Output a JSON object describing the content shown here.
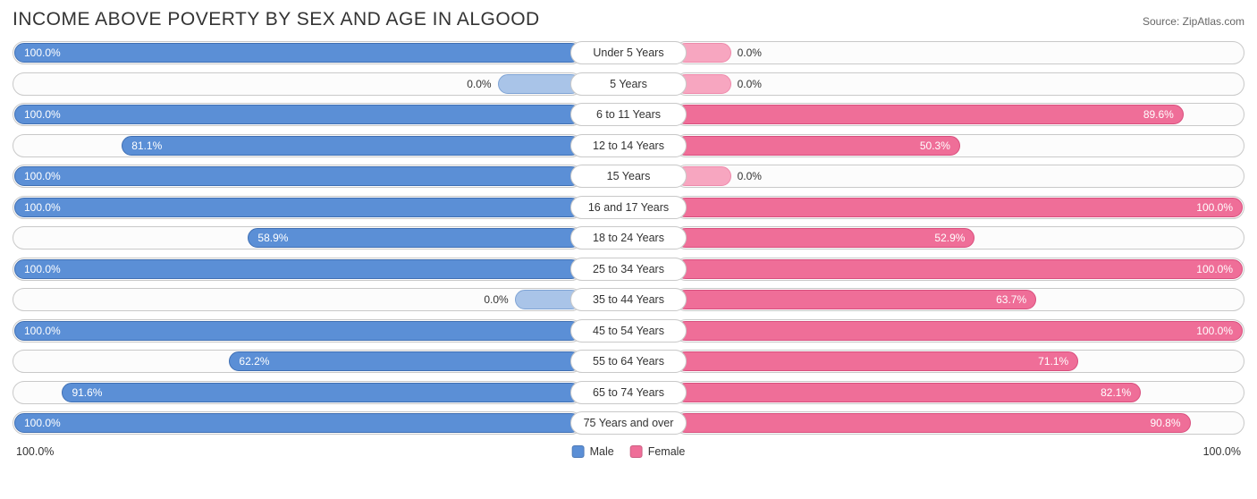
{
  "title": "INCOME ABOVE POVERTY BY SEX AND AGE IN ALGOOD",
  "source": "Source: ZipAtlas.com",
  "axis": {
    "left_label": "100.0%",
    "right_label": "100.0%",
    "max": 100.0
  },
  "colors": {
    "male_fill": "#5b8fd6",
    "male_border": "#3f6fb3",
    "male_light_fill": "#a9c4e8",
    "male_light_border": "#7ea3d4",
    "female_fill": "#ef6e98",
    "female_border": "#d84e7d",
    "female_light_fill": "#f7a6c0",
    "female_light_border": "#ee8aab",
    "track_border": "#c9c9c9",
    "track_bg": "#fcfcfc",
    "text": "#333333"
  },
  "legend": {
    "male": "Male",
    "female": "Female"
  },
  "rows": [
    {
      "category": "Under 5 Years",
      "male": 100.0,
      "female": 0.0,
      "male_label": "100.0%",
      "female_label": "0.0%",
      "female_stub": 10,
      "female_light": true
    },
    {
      "category": "5 Years",
      "male": 0.0,
      "female": 0.0,
      "male_label": "0.0%",
      "female_label": "0.0%",
      "male_stub": 15,
      "female_stub": 10,
      "male_light": true,
      "female_light": true
    },
    {
      "category": "6 to 11 Years",
      "male": 100.0,
      "female": 89.6,
      "male_label": "100.0%",
      "female_label": "89.6%"
    },
    {
      "category": "12 to 14 Years",
      "male": 81.1,
      "female": 50.3,
      "male_label": "81.1%",
      "female_label": "50.3%"
    },
    {
      "category": "15 Years",
      "male": 100.0,
      "female": 0.0,
      "male_label": "100.0%",
      "female_label": "0.0%",
      "female_stub": 10,
      "female_light": true
    },
    {
      "category": "16 and 17 Years",
      "male": 100.0,
      "female": 100.0,
      "male_label": "100.0%",
      "female_label": "100.0%"
    },
    {
      "category": "18 to 24 Years",
      "male": 58.9,
      "female": 52.9,
      "male_label": "58.9%",
      "female_label": "52.9%"
    },
    {
      "category": "25 to 34 Years",
      "male": 100.0,
      "female": 100.0,
      "male_label": "100.0%",
      "female_label": "100.0%"
    },
    {
      "category": "35 to 44 Years",
      "male": 0.0,
      "female": 63.7,
      "male_label": "0.0%",
      "female_label": "63.7%",
      "male_stub": 12,
      "male_light": true
    },
    {
      "category": "45 to 54 Years",
      "male": 100.0,
      "female": 100.0,
      "male_label": "100.0%",
      "female_label": "100.0%"
    },
    {
      "category": "55 to 64 Years",
      "male": 62.2,
      "female": 71.1,
      "male_label": "62.2%",
      "female_label": "71.1%"
    },
    {
      "category": "65 to 74 Years",
      "male": 91.6,
      "female": 82.1,
      "male_label": "91.6%",
      "female_label": "82.1%"
    },
    {
      "category": "75 Years and over",
      "male": 100.0,
      "female": 90.8,
      "male_label": "100.0%",
      "female_label": "90.8%"
    }
  ]
}
